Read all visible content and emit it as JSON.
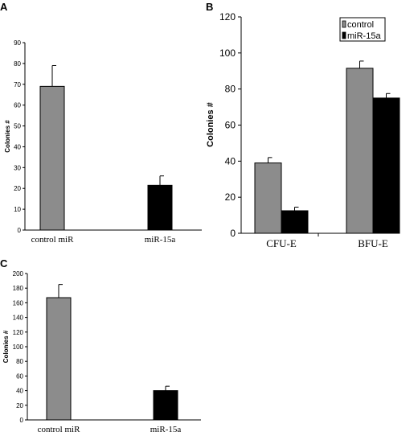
{
  "colors": {
    "control": "#8c8c8c",
    "miR15a": "#000000"
  },
  "chart_data": [
    {
      "panel": "A",
      "type": "bar",
      "categories": [
        "control miR",
        "miR-15a"
      ],
      "values": [
        69,
        21.5
      ],
      "errors": [
        10,
        4.5
      ],
      "bar_colors": [
        "#8c8c8c",
        "#000000"
      ],
      "ylabel": "Colonies #",
      "ylim": [
        0,
        90
      ],
      "yticks": [
        0,
        10,
        20,
        30,
        40,
        50,
        60,
        70,
        80,
        90
      ],
      "grid": false
    },
    {
      "panel": "B",
      "type": "bar",
      "categories": [
        "CFU-E",
        "BFU-E"
      ],
      "series": [
        {
          "name": "control",
          "values": [
            39,
            91.5
          ],
          "errors": [
            3,
            4
          ]
        },
        {
          "name": "miR-15a",
          "values": [
            12.5,
            75
          ],
          "errors": [
            2,
            2.5
          ]
        }
      ],
      "ylabel": "Colonies #",
      "ylim": [
        0,
        120
      ],
      "yticks": [
        0,
        20,
        40,
        60,
        80,
        100,
        120
      ],
      "legend": "top-right",
      "grid": false
    },
    {
      "panel": "C",
      "type": "bar",
      "categories": [
        "control miR",
        "miR-15a"
      ],
      "values": [
        167,
        40
      ],
      "errors": [
        18,
        6
      ],
      "bar_colors": [
        "#8c8c8c",
        "#000000"
      ],
      "ylabel": "Colonies #",
      "ylim": [
        0,
        200
      ],
      "yticks": [
        0,
        20,
        40,
        60,
        80,
        100,
        120,
        140,
        160,
        180,
        200
      ],
      "grid": false
    }
  ]
}
